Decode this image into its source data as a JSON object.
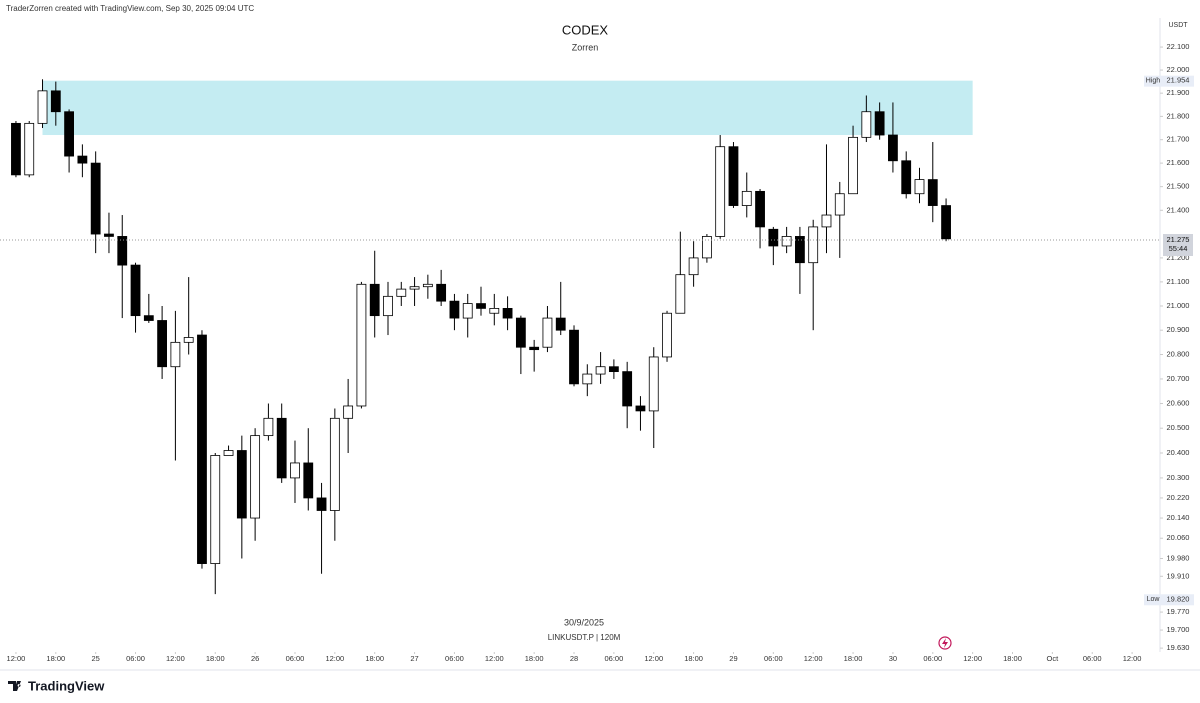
{
  "header": "TraderZorren created with TradingView.com, Sep 30, 2025 09:04 UTC",
  "logo": "TradingView",
  "chart_data": {
    "type": "candlestick",
    "title": "CODEX",
    "subtitle": "Zorren",
    "watermark_date": "30/9/2025",
    "watermark_symbol": "LINKUSDT.P | 120M",
    "currency": "USDT",
    "log_scale": true,
    "grid": false,
    "ylim": [
      19.615,
      22.227
    ],
    "yticks": [
      {
        "value": 22.1,
        "label": "22.100"
      },
      {
        "value": 22.0,
        "label": "22.000"
      },
      {
        "value": 21.9,
        "label": "21.900"
      },
      {
        "value": 21.8,
        "label": "21.800"
      },
      {
        "value": 21.7,
        "label": "21.700"
      },
      {
        "value": 21.6,
        "label": "21.600"
      },
      {
        "value": 21.5,
        "label": "21.500"
      },
      {
        "value": 21.4,
        "label": "21.400"
      },
      {
        "value": 21.2,
        "label": "21.200"
      },
      {
        "value": 21.1,
        "label": "21.100"
      },
      {
        "value": 21.0,
        "label": "21.000"
      },
      {
        "value": 20.9,
        "label": "20.900"
      },
      {
        "value": 20.8,
        "label": "20.800"
      },
      {
        "value": 20.7,
        "label": "20.700"
      },
      {
        "value": 20.6,
        "label": "20.600"
      },
      {
        "value": 20.5,
        "label": "20.500"
      },
      {
        "value": 20.4,
        "label": "20.400"
      },
      {
        "value": 20.3,
        "label": "20.300"
      },
      {
        "value": 20.22,
        "label": "20.220"
      },
      {
        "value": 20.14,
        "label": "20.140"
      },
      {
        "value": 20.06,
        "label": "20.060"
      },
      {
        "value": 19.98,
        "label": "19.980"
      },
      {
        "value": 19.91,
        "label": "19.910"
      },
      {
        "value": 19.77,
        "label": "19.770"
      },
      {
        "value": 19.7,
        "label": "19.700"
      },
      {
        "value": 19.63,
        "label": "19.630"
      }
    ],
    "xlim": [
      -1.2,
      86.1
    ],
    "xticks": [
      {
        "value": 0,
        "label": "12:00"
      },
      {
        "value": 3,
        "label": "18:00"
      },
      {
        "value": 6,
        "label": "25"
      },
      {
        "value": 9,
        "label": "06:00"
      },
      {
        "value": 12,
        "label": "12:00"
      },
      {
        "value": 15,
        "label": "18:00"
      },
      {
        "value": 18,
        "label": "26"
      },
      {
        "value": 21,
        "label": "06:00"
      },
      {
        "value": 24,
        "label": "12:00"
      },
      {
        "value": 27,
        "label": "18:00"
      },
      {
        "value": 30,
        "label": "27"
      },
      {
        "value": 33,
        "label": "06:00"
      },
      {
        "value": 36,
        "label": "12:00"
      },
      {
        "value": 39,
        "label": "18:00"
      },
      {
        "value": 42,
        "label": "28"
      },
      {
        "value": 45,
        "label": "06:00"
      },
      {
        "value": 48,
        "label": "12:00"
      },
      {
        "value": 51,
        "label": "18:00"
      },
      {
        "value": 54,
        "label": "29"
      },
      {
        "value": 57,
        "label": "06:00"
      },
      {
        "value": 60,
        "label": "12:00"
      },
      {
        "value": 63,
        "label": "18:00"
      },
      {
        "value": 66,
        "label": "30"
      },
      {
        "value": 69,
        "label": "06:00"
      },
      {
        "value": 72,
        "label": "12:00"
      },
      {
        "value": 75,
        "label": "18:00"
      },
      {
        "value": 78,
        "label": "Oct"
      },
      {
        "value": 81,
        "label": "06:00"
      },
      {
        "value": 84,
        "label": "12:00"
      }
    ],
    "up_color": "#ffffff",
    "down_color": "#000000",
    "open": [
      21.77,
      21.55,
      21.77,
      21.91,
      21.82,
      21.63,
      21.6,
      21.3,
      21.29,
      21.17,
      20.96,
      20.94,
      20.75,
      20.85,
      20.88,
      19.96,
      20.39,
      20.41,
      20.14,
      20.47,
      20.54,
      20.3,
      20.36,
      20.22,
      20.17,
      20.54,
      20.59,
      21.09,
      20.96,
      21.04,
      21.07,
      21.08,
      21.09,
      21.02,
      20.95,
      21.01,
      20.97,
      20.99,
      20.95,
      20.83,
      20.83,
      20.95,
      20.9,
      20.68,
      20.72,
      20.75,
      20.73,
      20.59,
      20.57,
      20.79,
      20.97,
      21.13,
      21.2,
      21.29,
      21.67,
      21.42,
      21.48,
      21.32,
      21.25,
      21.29,
      21.18,
      21.33,
      21.38,
      21.47,
      21.71,
      21.82,
      21.72,
      21.61,
      21.47,
      21.53,
      21.42
    ],
    "high": [
      21.78,
      21.78,
      21.96,
      21.95,
      21.83,
      21.68,
      21.65,
      21.39,
      21.38,
      21.18,
      21.05,
      21.0,
      20.98,
      21.12,
      20.9,
      20.4,
      20.43,
      20.47,
      20.5,
      20.6,
      20.6,
      20.45,
      20.5,
      20.28,
      20.58,
      20.7,
      21.1,
      21.23,
      21.1,
      21.1,
      21.12,
      21.13,
      21.15,
      21.05,
      21.05,
      21.08,
      21.05,
      21.04,
      20.96,
      20.86,
      21.0,
      21.1,
      20.92,
      20.76,
      20.81,
      20.78,
      20.77,
      20.63,
      20.83,
      20.98,
      21.31,
      21.27,
      21.3,
      21.72,
      21.69,
      21.56,
      21.49,
      21.33,
      21.33,
      21.33,
      21.36,
      21.68,
      21.52,
      21.76,
      21.89,
      21.86,
      21.86,
      21.65,
      21.58,
      21.69,
      21.45
    ],
    "low": [
      21.54,
      21.54,
      21.75,
      21.76,
      21.56,
      21.54,
      21.22,
      21.22,
      20.95,
      20.89,
      20.93,
      20.7,
      20.37,
      20.8,
      19.94,
      19.84,
      20.39,
      19.98,
      20.05,
      20.45,
      20.28,
      20.2,
      20.17,
      19.92,
      20.05,
      20.4,
      20.58,
      20.87,
      20.88,
      21.0,
      21.0,
      21.03,
      21.0,
      20.9,
      20.87,
      20.96,
      20.92,
      20.9,
      20.72,
      20.73,
      20.81,
      20.88,
      20.67,
      20.63,
      20.68,
      20.7,
      20.5,
      20.49,
      20.42,
      20.77,
      20.97,
      21.08,
      21.18,
      21.28,
      21.41,
      21.37,
      21.24,
      21.17,
      21.22,
      21.05,
      20.9,
      21.22,
      21.2,
      21.47,
      21.69,
      21.7,
      21.56,
      21.45,
      21.43,
      21.35,
      21.27
    ],
    "close": [
      21.55,
      21.77,
      21.91,
      21.82,
      21.63,
      21.6,
      21.3,
      21.29,
      21.17,
      20.96,
      20.94,
      20.75,
      20.85,
      20.87,
      19.96,
      20.39,
      20.41,
      20.14,
      20.47,
      20.54,
      20.3,
      20.36,
      20.22,
      20.17,
      20.54,
      20.59,
      21.09,
      20.96,
      21.04,
      21.07,
      21.08,
      21.09,
      21.02,
      20.95,
      21.01,
      20.99,
      20.99,
      20.95,
      20.83,
      20.82,
      20.95,
      20.9,
      20.68,
      20.72,
      20.75,
      20.73,
      20.59,
      20.57,
      20.79,
      20.97,
      21.13,
      21.2,
      21.29,
      21.67,
      21.42,
      21.48,
      21.33,
      21.25,
      21.29,
      21.18,
      21.33,
      21.38,
      21.47,
      21.71,
      21.82,
      21.72,
      21.61,
      21.47,
      21.53,
      21.42,
      21.28
    ],
    "zone": {
      "color": "#c4ecf2",
      "prices": [
        21.72,
        21.954
      ],
      "x": [
        2,
        72
      ]
    },
    "high_label": {
      "label": "High",
      "value": 21.954
    },
    "low_label": {
      "label": "Low",
      "value": {
        "value": 19.82,
        "label": "19.820"
      }
    },
    "last_price": {
      "value": 21.275,
      "countdown": "55:44"
    }
  }
}
